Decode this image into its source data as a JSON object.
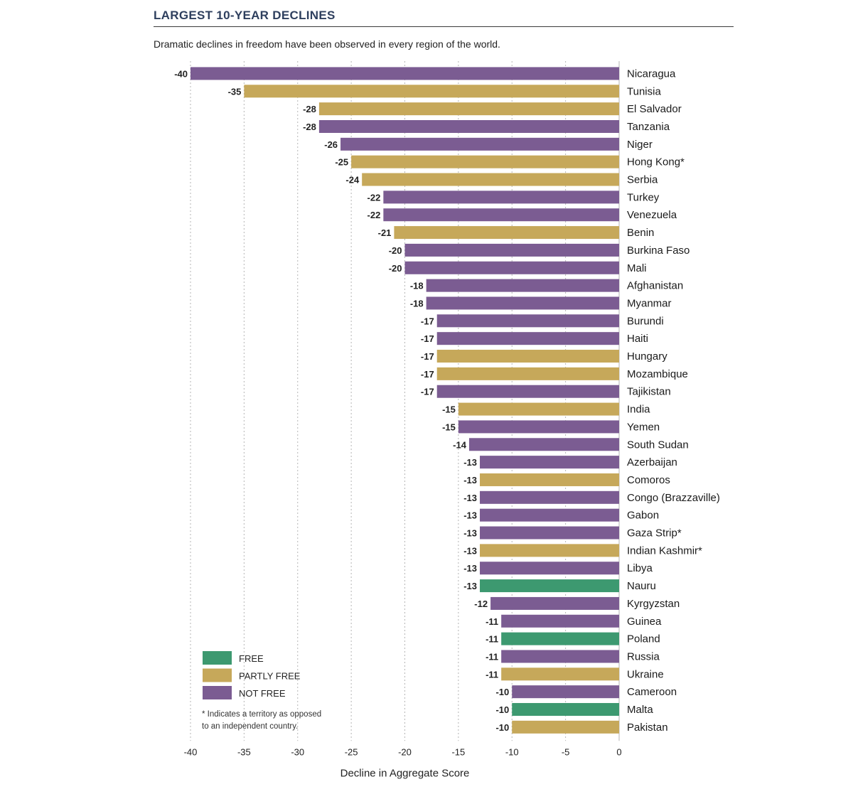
{
  "header": {
    "title": "LARGEST 10-YEAR DECLINES",
    "subtitle": "Dramatic declines in freedom have been observed in every region of the world."
  },
  "colors": {
    "FREE": "#3d9970",
    "PARTLY FREE": "#c6a85a",
    "NOT FREE": "#7b5c92"
  },
  "chart_data": {
    "type": "bar",
    "orientation": "horizontal",
    "xlabel": "Decline in Aggregate Score",
    "xlim": [
      -40,
      0
    ],
    "x_ticks": [
      -40,
      -35,
      -30,
      -25,
      -20,
      -15,
      -10,
      -5,
      0
    ],
    "grid": "vertical dashed",
    "legend_position": "bottom-left",
    "legend": [
      "FREE",
      "PARTLY FREE",
      "NOT FREE"
    ],
    "note": "* Indicates a territory as opposed to an independent country.",
    "categories": [
      "Nicaragua",
      "Tunisia",
      "El Salvador",
      "Tanzania",
      "Niger",
      "Hong Kong*",
      "Serbia",
      "Turkey",
      "Venezuela",
      "Benin",
      "Burkina Faso",
      "Mali",
      "Afghanistan",
      "Myanmar",
      "Burundi",
      "Haiti",
      "Hungary",
      "Mozambique",
      "Tajikistan",
      "India",
      "Yemen",
      "South Sudan",
      "Azerbaijan",
      "Comoros",
      "Congo (Brazzaville)",
      "Gabon",
      "Gaza Strip*",
      "Indian Kashmir*",
      "Libya",
      "Nauru",
      "Kyrgyzstan",
      "Guinea",
      "Poland",
      "Russia",
      "Ukraine",
      "Cameroon",
      "Malta",
      "Pakistan"
    ],
    "values": [
      -40,
      -35,
      -28,
      -28,
      -26,
      -25,
      -24,
      -22,
      -22,
      -21,
      -20,
      -20,
      -18,
      -18,
      -17,
      -17,
      -17,
      -17,
      -17,
      -15,
      -15,
      -14,
      -13,
      -13,
      -13,
      -13,
      -13,
      -13,
      -13,
      -13,
      -12,
      -11,
      -11,
      -11,
      -11,
      -10,
      -10,
      -10
    ],
    "status": [
      "NOT FREE",
      "PARTLY FREE",
      "PARTLY FREE",
      "NOT FREE",
      "NOT FREE",
      "PARTLY FREE",
      "PARTLY FREE",
      "NOT FREE",
      "NOT FREE",
      "PARTLY FREE",
      "NOT FREE",
      "NOT FREE",
      "NOT FREE",
      "NOT FREE",
      "NOT FREE",
      "NOT FREE",
      "PARTLY FREE",
      "PARTLY FREE",
      "NOT FREE",
      "PARTLY FREE",
      "NOT FREE",
      "NOT FREE",
      "NOT FREE",
      "PARTLY FREE",
      "NOT FREE",
      "NOT FREE",
      "NOT FREE",
      "PARTLY FREE",
      "NOT FREE",
      "FREE",
      "NOT FREE",
      "NOT FREE",
      "FREE",
      "NOT FREE",
      "PARTLY FREE",
      "NOT FREE",
      "FREE",
      "PARTLY FREE"
    ]
  }
}
